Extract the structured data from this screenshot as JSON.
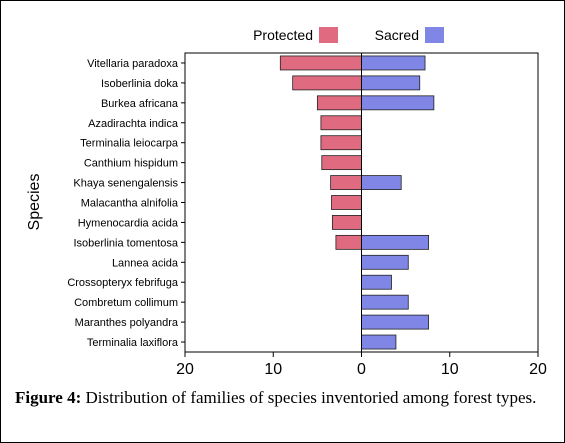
{
  "chart_data": {
    "type": "bar",
    "orientation": "horizontal",
    "ylabel": "Species",
    "categories": [
      "Vitellaria paradoxa",
      "Isoberlinia doka",
      "Burkea africana",
      "Azadirachta indica",
      "Terminalia leiocarpa",
      "Canthium hispidum",
      "Khaya senengalensis",
      "Malacantha alnifolia",
      "Hymenocardia acida",
      "Isoberlinia tomentosa",
      "Lannea acida",
      "Crossopteryx febrifuga",
      "Combretum collimum",
      "Maranthes polyandra",
      "Terminalia laxiflora"
    ],
    "series": [
      {
        "name": "Protected",
        "color": "#e06b80",
        "values": [
          9.2,
          7.8,
          5.0,
          4.6,
          4.6,
          4.5,
          3.5,
          3.4,
          3.3,
          2.9,
          0,
          0,
          0,
          0,
          0
        ]
      },
      {
        "name": "Sacred",
        "color": "#7f86e6",
        "values": [
          7.2,
          6.6,
          8.2,
          0,
          0,
          0,
          4.5,
          0,
          0,
          7.6,
          5.3,
          3.4,
          5.3,
          7.6,
          3.9
        ]
      }
    ],
    "xlim": [
      -20,
      20
    ],
    "xticks": [
      -20,
      -10,
      0,
      10,
      20
    ],
    "xtick_labels": [
      "20",
      "10",
      "0",
      "10",
      "20"
    ],
    "legend_position": "top",
    "grid": false
  },
  "caption": {
    "label": "Figure 4:",
    "text": " Distribution of families of species inventoried among forest types."
  }
}
